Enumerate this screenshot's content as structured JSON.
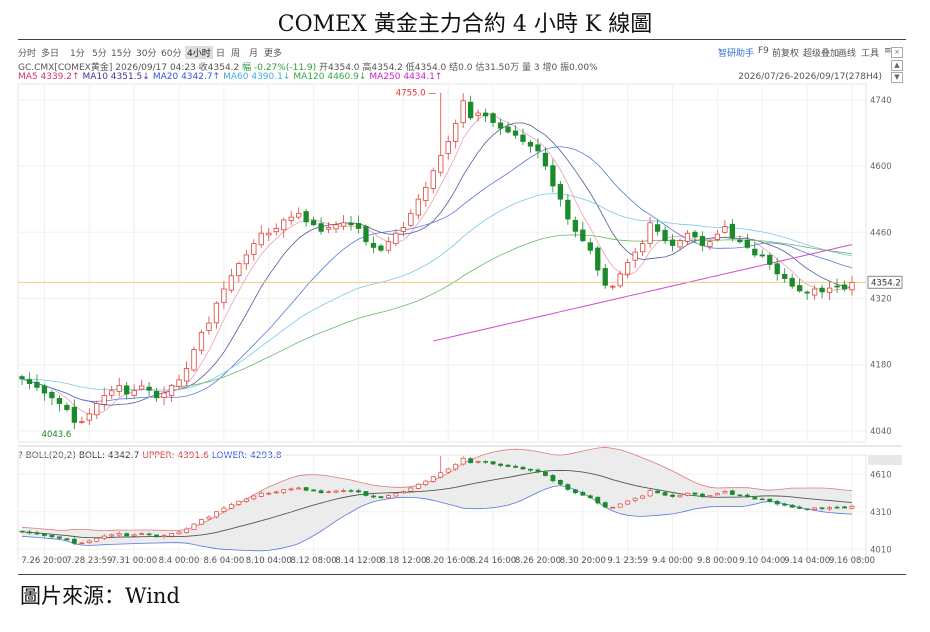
{
  "title": "COMEX 黃金主力合約 4 小時 K 線圖",
  "source": "圖片來源：Wind",
  "toolbar": {
    "periods": [
      "分时",
      "多日",
      "1分",
      "5分",
      "15分",
      "30分",
      "60分",
      "4小时",
      "日",
      "周",
      "月",
      "更多"
    ],
    "active_period": "4小时",
    "right_items": [
      "智研助手",
      "F9",
      "前复权",
      "超级叠加",
      "画线",
      "工具",
      "≡"
    ]
  },
  "info_line": {
    "symbol": "GC.CMX[COMEX黄金]",
    "datetime": "2026/09/17 04:23",
    "close": "收4354.2",
    "change": "幅 -0.27%(-11.9)",
    "open": "开4354.0",
    "high": "高4354.2",
    "low": "低4354.0",
    "settle": "结0.0",
    "amount": "估31.50万",
    "volume": "量 3",
    "oi_change": "增0",
    "amplitude": "振0.00%"
  },
  "ma_legend": [
    {
      "label": "MA5 4339.2↑",
      "color": "#d6336c"
    },
    {
      "label": "MA10 4351.5↓",
      "color": "#3a3a8f"
    },
    {
      "label": "MA20 4342.7↑",
      "color": "#3355dd"
    },
    {
      "label": "MA60 4390.1↓",
      "color": "#44aadd"
    },
    {
      "label": "MA120 4460.9↓",
      "color": "#33aa44"
    },
    {
      "label": "MA250 4434.1↑",
      "color": "#cc22cc"
    }
  ],
  "range_text": "2026/07/26-2026/09/17(278H4)",
  "boll_legend": [
    {
      "label": "? BOLL(20,2)",
      "color": "#555"
    },
    {
      "label": "BOLL: 4342.7",
      "color": "#333"
    },
    {
      "label": "UPPER: 4391.6",
      "color": "#dd3333"
    },
    {
      "label": "LOWER: 4293.8",
      "color": "#3355dd"
    }
  ],
  "window_buttons": [
    "×",
    "▲",
    "▼"
  ],
  "chart_data": {
    "type": "candlestick",
    "main_pane": {
      "y_ticks": [
        4740,
        4600,
        4460,
        4320,
        4180,
        4040
      ],
      "ylim": [
        4025,
        4765
      ],
      "last_price_label": "4354.2",
      "last_price": 4354.2,
      "high_marker": {
        "label": "4755.0",
        "index": 56,
        "value": 4755.0
      },
      "low_marker": {
        "label": "4043.6",
        "index": 7,
        "value": 4043.6
      },
      "ma120_start_index": 55,
      "ma250_start_index": 55
    },
    "boll_pane": {
      "y_ticks": [
        4610,
        4310,
        4010
      ],
      "ylim": [
        3980,
        4700
      ]
    },
    "x_ticks": [
      {
        "label": "7.26 20:00",
        "index": 3
      },
      {
        "label": "7.28 23:59",
        "index": 9
      },
      {
        "label": "7.31 00:00",
        "index": 15
      },
      {
        "label": "8.4 00:00",
        "index": 21
      },
      {
        "label": "8.6 04:00",
        "index": 27
      },
      {
        "label": "8.10 04:00",
        "index": 33
      },
      {
        "label": "8.12 08:00",
        "index": 39
      },
      {
        "label": "8.14 12:00",
        "index": 45
      },
      {
        "label": "8.18 12:00",
        "index": 51
      },
      {
        "label": "8.20 16:00",
        "index": 57
      },
      {
        "label": "8.24 16:00",
        "index": 63
      },
      {
        "label": "8.26 20:00",
        "index": 69
      },
      {
        "label": "8.30 20:00",
        "index": 75
      },
      {
        "label": "9.1 23:59",
        "index": 81
      },
      {
        "label": "9.4 00:00",
        "index": 87
      },
      {
        "label": "9.8 00:00",
        "index": 93
      },
      {
        "label": "9.10 04:00",
        "index": 99
      },
      {
        "label": "9.14 04:00",
        "index": 105
      },
      {
        "label": "9.16 08:00",
        "index": 111
      }
    ],
    "closes": [
      4150,
      4140,
      4132,
      4120,
      4110,
      4098,
      4085,
      4058,
      4060,
      4076,
      4098,
      4115,
      4125,
      4136,
      4118,
      4125,
      4135,
      4126,
      4110,
      4120,
      4136,
      4148,
      4172,
      4212,
      4248,
      4268,
      4310,
      4340,
      4368,
      4394,
      4412,
      4436,
      4458,
      4458,
      4468,
      4486,
      4492,
      4500,
      4482,
      4476,
      4462,
      4470,
      4476,
      4480,
      4476,
      4468,
      4440,
      4428,
      4422,
      4440,
      4458,
      4470,
      4500,
      4530,
      4555,
      4590,
      4622,
      4652,
      4690,
      4738,
      4702,
      4712,
      4706,
      4692,
      4680,
      4672,
      4665,
      4652,
      4642,
      4632,
      4600,
      4558,
      4530,
      4488,
      4462,
      4442,
      4422,
      4380,
      4348,
      4346,
      4372,
      4396,
      4418,
      4436,
      4480,
      4462,
      4442,
      4432,
      4442,
      4458,
      4450,
      4432,
      4440,
      4456,
      4472,
      4448,
      4440,
      4428,
      4412,
      4412,
      4392,
      4372,
      4362,
      4346,
      4336,
      4332,
      4340,
      4334,
      4342,
      4346,
      4340,
      4354
    ]
  }
}
